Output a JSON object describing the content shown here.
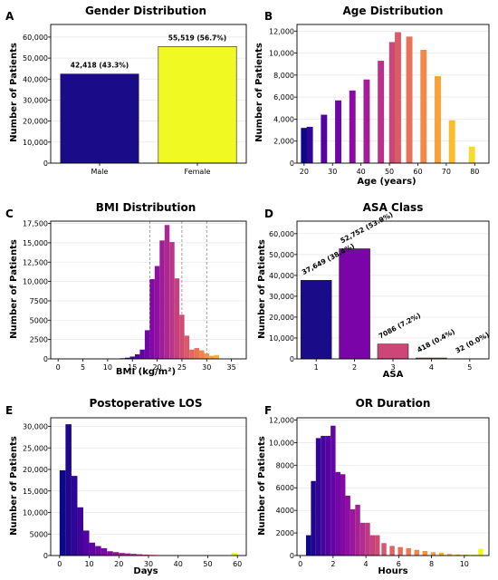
{
  "chart_data": [
    {
      "panel": "A",
      "type": "bar",
      "title": "Gender Distribution",
      "xlabel": "",
      "ylabel": "Number of Patients",
      "categories": [
        "Male",
        "Female"
      ],
      "values": [
        42418,
        55519
      ],
      "data_labels": [
        "42,418 (43.3%)",
        "55,519 (56.7%)"
      ],
      "colors": [
        "#1a0b88",
        "#f0f921"
      ],
      "ylim": [
        0,
        66000
      ],
      "yticks": [
        0,
        10000,
        20000,
        30000,
        40000,
        50000,
        60000
      ],
      "ytick_labels": [
        "0",
        "10,000",
        "20,000",
        "30,000",
        "40,000",
        "50,000",
        "60,000"
      ],
      "grid": "y"
    },
    {
      "panel": "B",
      "type": "bar",
      "title": "Age Distribution",
      "xlabel": "Age (years)",
      "ylabel": "Number of Patients",
      "x": [
        20,
        22,
        27,
        32,
        37,
        42,
        47,
        51,
        53,
        57,
        62,
        67,
        72,
        79,
        81
      ],
      "values": [
        3200,
        3300,
        4400,
        5700,
        6600,
        7600,
        9300,
        11000,
        11900,
        11500,
        10300,
        7900,
        3900,
        1500,
        0
      ],
      "bar_width": 2.2,
      "colormap": "plasma",
      "xlim": [
        17.5,
        85
      ],
      "xticks": [
        20,
        30,
        40,
        50,
        60,
        70,
        80
      ],
      "ylim": [
        0,
        12600
      ],
      "yticks": [
        0,
        2000,
        4000,
        6000,
        8000,
        10000,
        12000
      ],
      "ytick_labels": [
        "0",
        "2,000",
        "4,000",
        "6,000",
        "8,000",
        "10,000",
        "12,000"
      ],
      "grid": "y"
    },
    {
      "panel": "C",
      "type": "bar",
      "title": "BMI Distribution",
      "xlabel": "BMI (kg/m²)",
      "ylabel": "Number of Patients",
      "x": [
        13,
        14,
        15,
        16,
        17,
        18,
        19,
        20,
        21,
        22,
        23,
        24,
        25,
        26,
        27,
        28,
        29,
        30,
        31,
        32,
        33,
        34,
        35,
        36
      ],
      "values": [
        80,
        150,
        300,
        600,
        1200,
        3700,
        10300,
        12000,
        15300,
        17300,
        15100,
        10400,
        5700,
        3000,
        1200,
        1400,
        1100,
        700,
        400,
        500,
        0,
        0,
        0,
        0
      ],
      "bar_width": 1.0,
      "colormap": "plasma",
      "vlines": [
        18.5,
        25,
        30
      ],
      "xlim": [
        -1.5,
        38
      ],
      "xticks": [
        0,
        5,
        10,
        15,
        20,
        25,
        30,
        35
      ],
      "ylim": [
        0,
        17800
      ],
      "yticks": [
        0,
        2500,
        5000,
        7500,
        10000,
        12500,
        15000,
        17500
      ],
      "ytick_labels": [
        "0",
        "2500",
        "5000",
        "7500",
        "10,000",
        "12,500",
        "15,000",
        "17,500"
      ],
      "grid": "y"
    },
    {
      "panel": "D",
      "type": "bar",
      "title": "ASA Class",
      "xlabel": "ASA",
      "ylabel": "Number of Patients",
      "categories": [
        "1",
        "2",
        "3",
        "4",
        "5"
      ],
      "values": [
        37649,
        52752,
        7086,
        418,
        32
      ],
      "data_labels": [
        "37,649 (38.4%)",
        "52,752 (53.9%)",
        "7086 (7.2%)",
        "418 (0.4%)",
        "32 (0.0%)"
      ],
      "colors": [
        "#1a0b88",
        "#7a04a8",
        "#cc4778",
        "#f89540",
        "#f0f921"
      ],
      "ylim": [
        0,
        66000
      ],
      "yticks": [
        0,
        10000,
        20000,
        30000,
        40000,
        50000,
        60000
      ],
      "ytick_labels": [
        "0",
        "10,000",
        "20,000",
        "30,000",
        "40,000",
        "50,000",
        "60,000"
      ],
      "grid": "y"
    },
    {
      "panel": "E",
      "type": "bar",
      "title": "Postoperative LOS",
      "xlabel": "Days",
      "ylabel": "Number of Patients",
      "x": [
        1,
        3,
        5,
        7,
        9,
        11,
        13,
        15,
        17,
        19,
        21,
        23,
        25,
        27,
        29,
        31,
        33,
        35,
        37,
        39,
        41,
        43,
        45,
        47,
        49,
        51,
        53,
        55,
        57,
        59
      ],
      "values": [
        19800,
        30500,
        18500,
        11200,
        5800,
        3000,
        2200,
        1700,
        1000,
        800,
        600,
        500,
        400,
        300,
        200,
        150,
        120,
        100,
        80,
        60,
        50,
        40,
        30,
        30,
        20,
        20,
        20,
        20,
        20,
        600
      ],
      "bar_width": 2.0,
      "colormap": "plasma",
      "xlim": [
        -3,
        63
      ],
      "xticks": [
        0,
        10,
        20,
        30,
        40,
        50,
        60
      ],
      "ylim": [
        0,
        32000
      ],
      "yticks": [
        0,
        5000,
        10000,
        15000,
        20000,
        25000,
        30000
      ],
      "ytick_labels": [
        "0",
        "5000",
        "10,000",
        "15,000",
        "20,000",
        "25,000",
        "30,000"
      ],
      "grid": "y"
    },
    {
      "panel": "F",
      "type": "bar",
      "title": "OR Duration",
      "xlabel": "Hours",
      "ylabel": "Number of Patients",
      "x": [
        0.5,
        0.8,
        1.1,
        1.4,
        1.7,
        2.0,
        2.3,
        2.6,
        2.9,
        3.2,
        3.5,
        3.8,
        4.1,
        4.4,
        4.7,
        5.1,
        5.6,
        6.1,
        6.6,
        7.1,
        7.6,
        8.1,
        8.6,
        9.1,
        9.6,
        10.1,
        10.6,
        11.0
      ],
      "values": [
        1800,
        6600,
        10400,
        10600,
        10600,
        11500,
        7400,
        7200,
        5300,
        4100,
        4500,
        2900,
        2900,
        1800,
        1800,
        1100,
        850,
        750,
        650,
        500,
        400,
        300,
        250,
        150,
        100,
        80,
        60,
        600
      ],
      "bar_width": 0.3,
      "colormap": "plasma",
      "xlim": [
        -0.2,
        11.5
      ],
      "xticks": [
        0,
        2,
        4,
        6,
        8,
        10
      ],
      "ylim": [
        0,
        12200
      ],
      "yticks": [
        0,
        2000,
        4000,
        6000,
        8000,
        10000,
        12000
      ],
      "ytick_labels": [
        "0",
        "2000",
        "4000",
        "6000",
        "8000",
        "10,000",
        "12,000"
      ],
      "grid": "y"
    }
  ]
}
